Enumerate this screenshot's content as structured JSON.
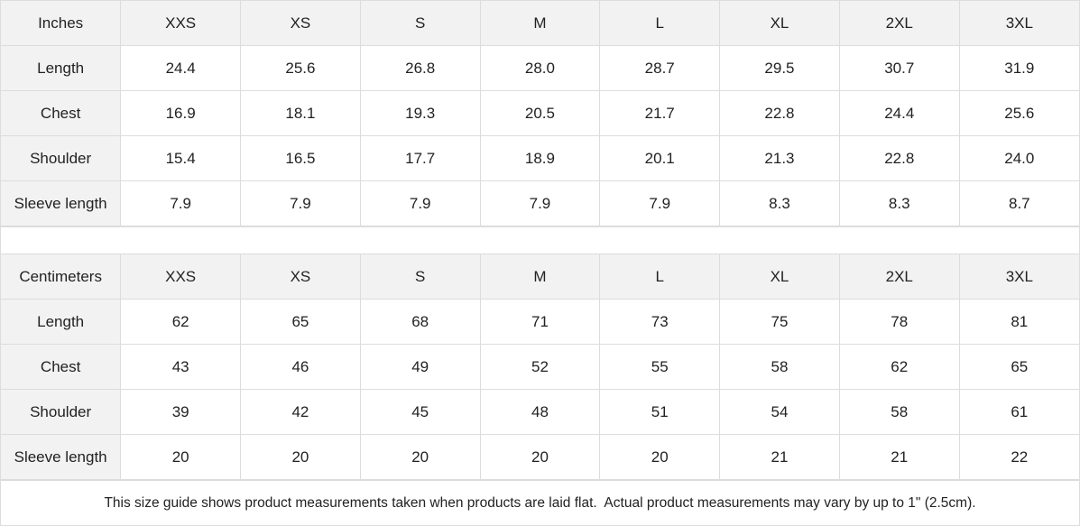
{
  "sizes": [
    "XXS",
    "XS",
    "S",
    "M",
    "L",
    "XL",
    "2XL",
    "3XL"
  ],
  "inches": {
    "unit": "Inches",
    "rows": [
      {
        "label": "Length",
        "values": [
          "24.4",
          "25.6",
          "26.8",
          "28.0",
          "28.7",
          "29.5",
          "30.7",
          "31.9"
        ]
      },
      {
        "label": "Chest",
        "values": [
          "16.9",
          "18.1",
          "19.3",
          "20.5",
          "21.7",
          "22.8",
          "24.4",
          "25.6"
        ]
      },
      {
        "label": "Shoulder",
        "values": [
          "15.4",
          "16.5",
          "17.7",
          "18.9",
          "20.1",
          "21.3",
          "22.8",
          "24.0"
        ]
      },
      {
        "label": "Sleeve length",
        "values": [
          "7.9",
          "7.9",
          "7.9",
          "7.9",
          "7.9",
          "8.3",
          "8.3",
          "8.7"
        ]
      }
    ]
  },
  "centimeters": {
    "unit": "Centimeters",
    "rows": [
      {
        "label": "Length",
        "values": [
          "62",
          "65",
          "68",
          "71",
          "73",
          "75",
          "78",
          "81"
        ]
      },
      {
        "label": "Chest",
        "values": [
          "43",
          "46",
          "49",
          "52",
          "55",
          "58",
          "62",
          "65"
        ]
      },
      {
        "label": "Shoulder",
        "values": [
          "39",
          "42",
          "45",
          "48",
          "51",
          "54",
          "58",
          "61"
        ]
      },
      {
        "label": "Sleeve length",
        "values": [
          "20",
          "20",
          "20",
          "20",
          "20",
          "21",
          "21",
          "22"
        ]
      }
    ]
  },
  "note": "This size guide shows product measurements taken when products are laid flat.  Actual product measurements may vary by up to 1\" (2.5cm)."
}
